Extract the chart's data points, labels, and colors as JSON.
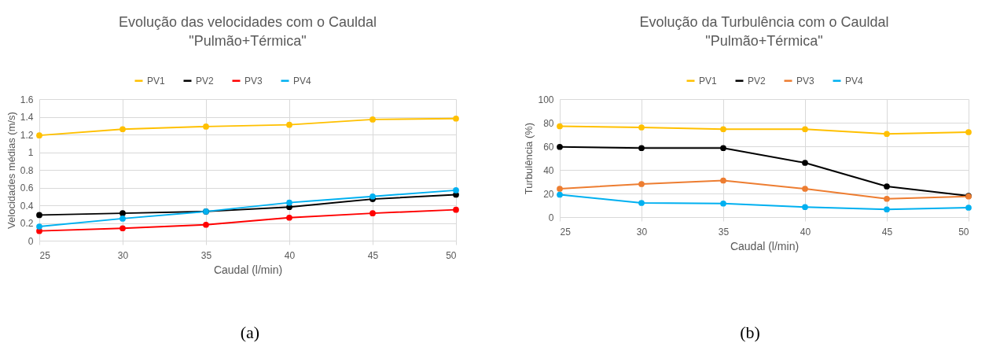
{
  "chart_data": [
    {
      "type": "line",
      "title": "Evolução das velocidades com o Cauldal\n\"Pulmão+Térmica\"",
      "xlabel": "Caudal (l/min)",
      "ylabel": "Velocidades médias (m/s)",
      "x": [
        25,
        30,
        35,
        40,
        45,
        50
      ],
      "xlim": [
        25,
        50
      ],
      "xticks": [
        25,
        30,
        35,
        40,
        45,
        50
      ],
      "ylim": [
        0,
        1.6
      ],
      "yticks": [
        0,
        0.2,
        0.4,
        0.6,
        0.8,
        1,
        1.2,
        1.4,
        1.6
      ],
      "grid": true,
      "legend": "top",
      "marker": "circle",
      "annotations": [
        "(a)"
      ],
      "series": [
        {
          "name": "PV1",
          "color": "#ffc000",
          "values": [
            1.19,
            1.26,
            1.29,
            1.31,
            1.37,
            1.38
          ]
        },
        {
          "name": "PV2",
          "color": "#000000",
          "values": [
            0.29,
            0.31,
            0.33,
            0.38,
            0.47,
            0.52
          ]
        },
        {
          "name": "PV3",
          "color": "#ff0000",
          "values": [
            0.11,
            0.14,
            0.18,
            0.26,
            0.31,
            0.35
          ]
        },
        {
          "name": "PV4",
          "color": "#00b0f0",
          "values": [
            0.16,
            0.25,
            0.33,
            0.43,
            0.5,
            0.57
          ]
        }
      ]
    },
    {
      "type": "line",
      "title": "Evolução da Turbulência com o Cauldal\n\"Pulmão+Térmica\"",
      "xlabel": "Caudal (l/min)",
      "ylabel": "Turbulência (%)",
      "x": [
        25,
        30,
        35,
        40,
        45,
        50
      ],
      "xlim": [
        25,
        50
      ],
      "xticks": [
        25,
        30,
        35,
        40,
        45,
        50
      ],
      "ylim": [
        0,
        100
      ],
      "yticks": [
        0,
        20,
        40,
        60,
        80,
        100
      ],
      "grid": true,
      "legend": "top",
      "marker": "circle",
      "annotations": [
        "(b)"
      ],
      "series": [
        {
          "name": "PV1",
          "color": "#ffc000",
          "values": [
            77,
            76,
            74.5,
            74.5,
            70.5,
            72
          ]
        },
        {
          "name": "PV2",
          "color": "#000000",
          "values": [
            59.5,
            58.5,
            58.5,
            46,
            26,
            18
          ]
        },
        {
          "name": "PV3",
          "color": "#ed7d31",
          "values": [
            24,
            28,
            31,
            24,
            15.5,
            17.5
          ]
        },
        {
          "name": "PV4",
          "color": "#00b0f0",
          "values": [
            19,
            12,
            11.5,
            8.5,
            6.5,
            8
          ]
        }
      ]
    }
  ]
}
